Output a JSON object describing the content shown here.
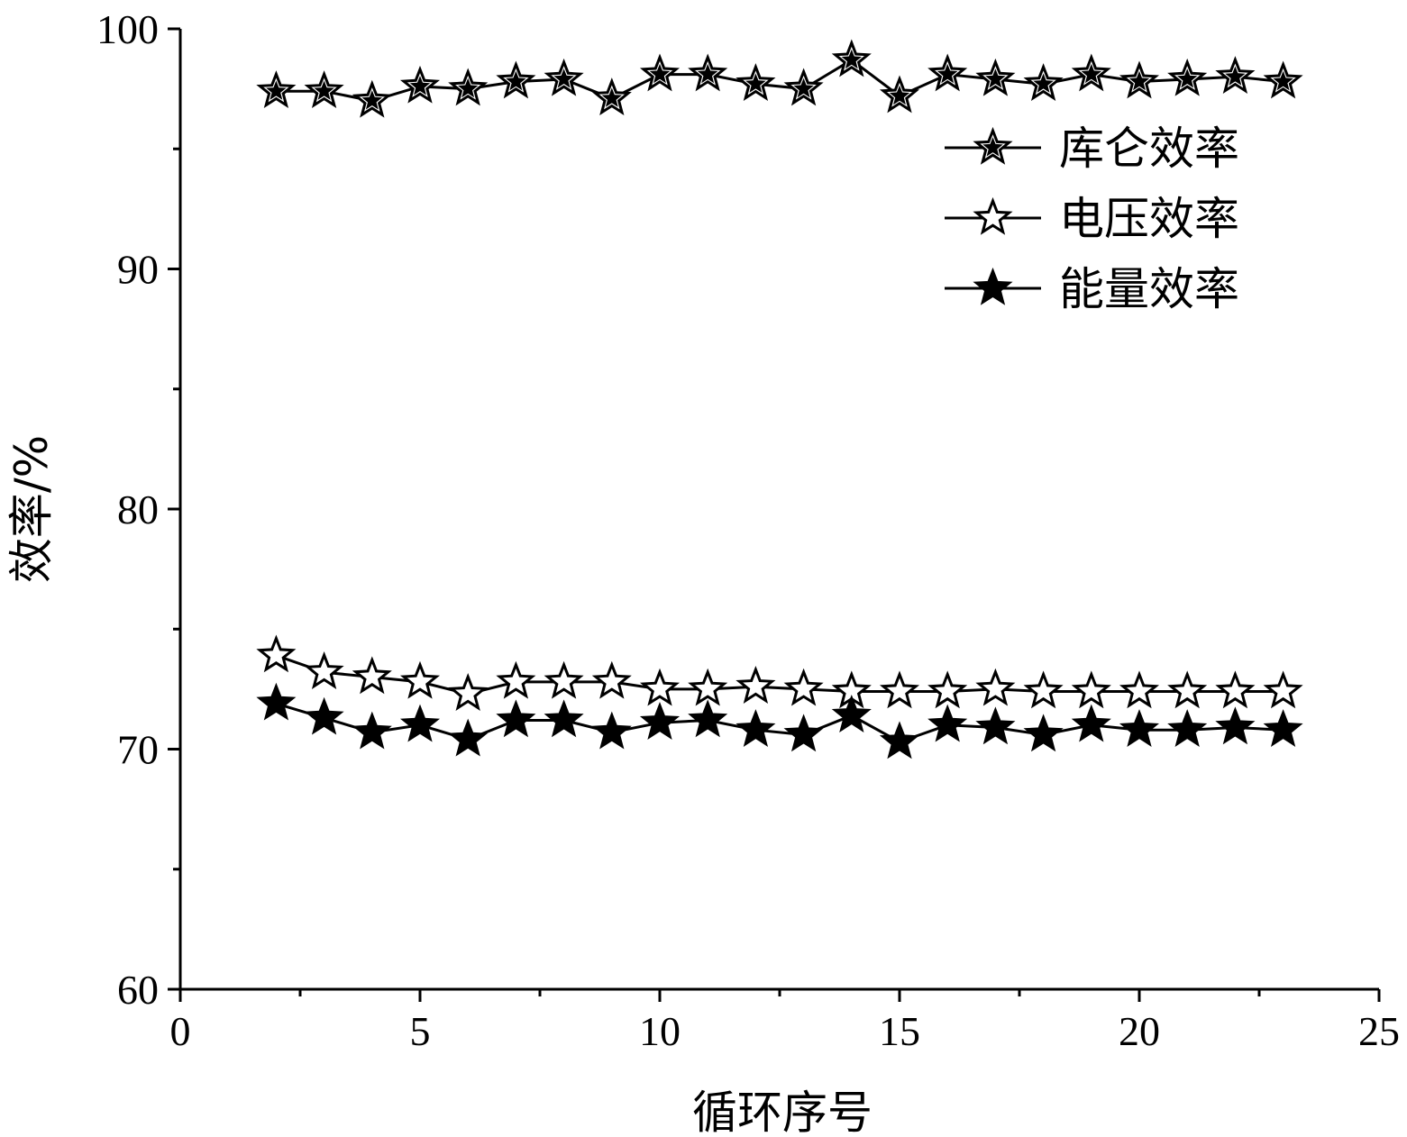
{
  "chart_data": {
    "type": "line",
    "title": "",
    "xlabel": "循环序号",
    "ylabel": "效率/%",
    "xlim": [
      0,
      25
    ],
    "ylim": [
      60,
      100
    ],
    "xticks": [
      0,
      5,
      10,
      15,
      20,
      25
    ],
    "yticks": [
      60,
      70,
      80,
      90,
      100
    ],
    "grid": false,
    "legend_position": "top-right",
    "x": [
      2,
      3,
      4,
      5,
      6,
      7,
      8,
      9,
      10,
      11,
      12,
      13,
      14,
      15,
      16,
      17,
      18,
      19,
      20,
      21,
      22,
      23
    ],
    "series": [
      {
        "name": "库仑效率",
        "marker": "star-half",
        "values": [
          97.4,
          97.4,
          97.0,
          97.6,
          97.5,
          97.8,
          97.9,
          97.1,
          98.1,
          98.1,
          97.7,
          97.5,
          98.7,
          97.2,
          98.1,
          97.9,
          97.7,
          98.1,
          97.8,
          97.9,
          98.0,
          97.8
        ]
      },
      {
        "name": "电压效率",
        "marker": "star-open",
        "values": [
          73.9,
          73.2,
          73.0,
          72.8,
          72.3,
          72.8,
          72.8,
          72.8,
          72.5,
          72.5,
          72.6,
          72.5,
          72.4,
          72.4,
          72.4,
          72.5,
          72.4,
          72.4,
          72.4,
          72.4,
          72.4,
          72.4
        ]
      },
      {
        "name": "能量效率",
        "marker": "star-filled",
        "values": [
          71.9,
          71.3,
          70.7,
          71.0,
          70.4,
          71.2,
          71.2,
          70.7,
          71.1,
          71.2,
          70.8,
          70.6,
          71.4,
          70.3,
          71.0,
          70.9,
          70.6,
          71.0,
          70.8,
          70.8,
          70.9,
          70.8
        ]
      }
    ]
  }
}
